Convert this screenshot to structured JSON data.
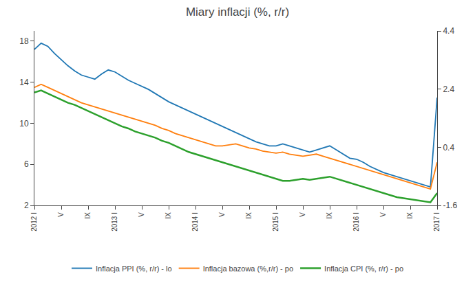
{
  "chart_data": {
    "type": "line",
    "title": "Miary inflacji (%, r/r)",
    "categories": [
      "2012 I",
      null,
      null,
      null,
      "V",
      null,
      null,
      null,
      "IX",
      null,
      null,
      null,
      "2013 I",
      null,
      null,
      null,
      "V",
      null,
      null,
      null,
      "IX",
      null,
      null,
      null,
      "2014 I",
      null,
      null,
      null,
      "V",
      null,
      null,
      null,
      "IX",
      null,
      null,
      null,
      "2015 I",
      null,
      null,
      null,
      "V",
      null,
      null,
      null,
      "IX",
      null,
      null,
      null,
      "2016 I",
      null,
      null,
      null,
      "V",
      null,
      null,
      null,
      "IX",
      null,
      null,
      null,
      "2017 I"
    ],
    "series": [
      {
        "name": "Inflacja PPI (%, r/r) - lo",
        "values": [
          17.2,
          17.8,
          17.5,
          16.8,
          16.2,
          15.6,
          15.1,
          14.7,
          14.5,
          14.3,
          14.8,
          15.2,
          15.0,
          14.6,
          14.2,
          13.9,
          13.6,
          13.3,
          12.9,
          12.5,
          12.1,
          11.8,
          11.5,
          11.2,
          10.9,
          10.6,
          10.3,
          10.0,
          9.7,
          9.4,
          9.1,
          8.8,
          8.5,
          8.2,
          8.0,
          7.8,
          7.8,
          8.0,
          7.8,
          7.6,
          7.4,
          7.2,
          7.4,
          7.6,
          7.8,
          7.4,
          7.0,
          6.6,
          6.5,
          6.2,
          5.8,
          5.5,
          5.2,
          5.0,
          4.8,
          4.6,
          4.4,
          4.2,
          4.0,
          3.8,
          12.5
        ]
      },
      {
        "name": "Inflacja bazowa (%,r/r) - po",
        "values": [
          13.5,
          13.8,
          13.5,
          13.2,
          12.9,
          12.6,
          12.3,
          12.0,
          11.8,
          11.6,
          11.4,
          11.2,
          11.0,
          10.8,
          10.6,
          10.4,
          10.2,
          10.0,
          9.8,
          9.5,
          9.3,
          9.0,
          8.8,
          8.6,
          8.4,
          8.2,
          8.0,
          7.8,
          7.8,
          7.9,
          8.0,
          7.8,
          7.6,
          7.5,
          7.3,
          7.2,
          7.1,
          7.2,
          7.0,
          6.9,
          6.8,
          6.9,
          7.0,
          6.8,
          6.6,
          6.4,
          6.2,
          6.0,
          5.8,
          5.6,
          5.4,
          5.2,
          5.0,
          4.8,
          4.6,
          4.4,
          4.2,
          4.0,
          3.8,
          3.6,
          6.2
        ]
      },
      {
        "name": "Inflacja CPI (%, r/r) - po",
        "values": [
          13.0,
          13.2,
          12.9,
          12.6,
          12.3,
          12.0,
          11.8,
          11.5,
          11.2,
          10.9,
          10.6,
          10.3,
          10.0,
          9.7,
          9.5,
          9.2,
          9.0,
          8.8,
          8.6,
          8.3,
          8.1,
          7.8,
          7.5,
          7.2,
          7.0,
          6.8,
          6.6,
          6.4,
          6.2,
          6.0,
          5.8,
          5.6,
          5.4,
          5.2,
          5.0,
          4.8,
          4.6,
          4.4,
          4.4,
          4.5,
          4.6,
          4.5,
          4.6,
          4.7,
          4.8,
          4.6,
          4.4,
          4.2,
          4.0,
          3.8,
          3.6,
          3.4,
          3.2,
          3.0,
          2.8,
          2.7,
          2.6,
          2.5,
          2.4,
          2.3,
          3.2
        ]
      }
    ],
    "ylim": [
      2,
      19
    ],
    "yticks": [
      2,
      6,
      10,
      14,
      18
    ],
    "y2lim": [
      -1.6,
      4.4
    ],
    "y2ticks": [
      -1.6,
      0.4,
      2.4,
      4.4
    ],
    "grid": false,
    "legend": "bottom"
  }
}
